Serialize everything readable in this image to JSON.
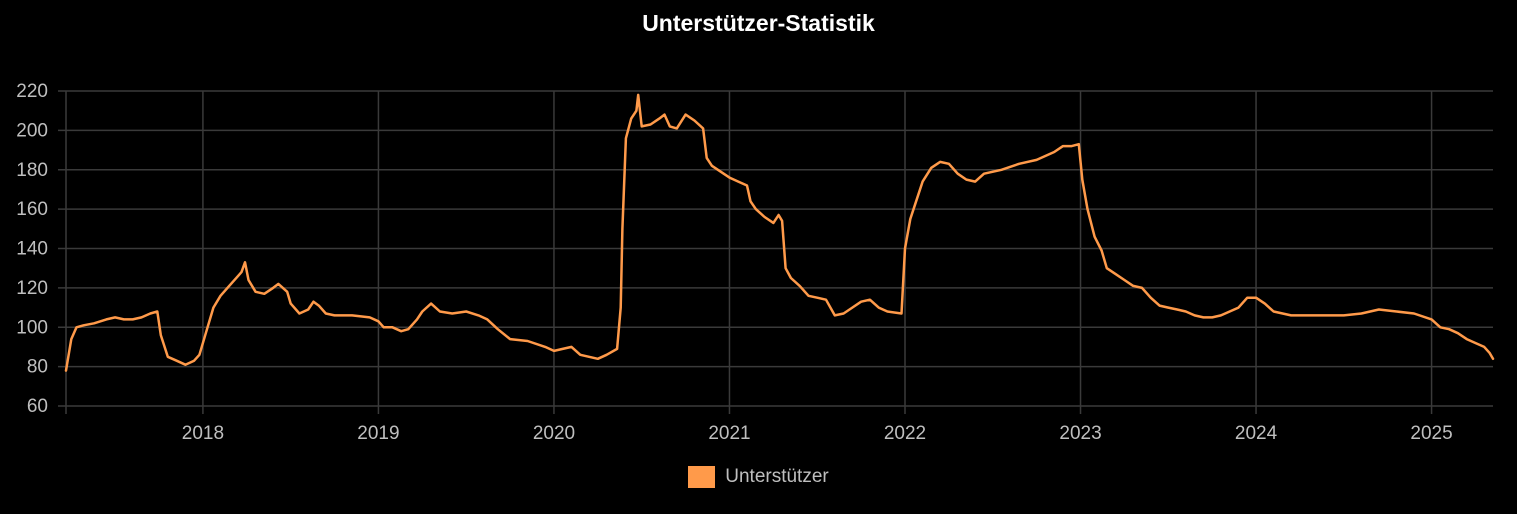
{
  "chart_data": {
    "type": "line",
    "title": "Unterstützer-Statistik",
    "xlabel": "",
    "ylabel": "",
    "ylim": [
      60,
      220
    ],
    "yticks": [
      60,
      80,
      100,
      120,
      140,
      160,
      180,
      200,
      220
    ],
    "xlim": [
      2017.22,
      2025.35
    ],
    "xticks": [
      "2018",
      "2019",
      "2020",
      "2021",
      "2022",
      "2023",
      "2024",
      "2025"
    ],
    "grid": true,
    "legend_position": "bottom",
    "series": [
      {
        "name": "Unterstützer",
        "color": "#ff9a4a",
        "points": [
          [
            2017.22,
            78
          ],
          [
            2017.25,
            94
          ],
          [
            2017.28,
            100
          ],
          [
            2017.32,
            101
          ],
          [
            2017.38,
            102
          ],
          [
            2017.45,
            104
          ],
          [
            2017.5,
            105
          ],
          [
            2017.55,
            104
          ],
          [
            2017.6,
            104
          ],
          [
            2017.65,
            105
          ],
          [
            2017.7,
            107
          ],
          [
            2017.74,
            108
          ],
          [
            2017.76,
            96
          ],
          [
            2017.8,
            85
          ],
          [
            2017.85,
            83
          ],
          [
            2017.9,
            81
          ],
          [
            2017.95,
            83
          ],
          [
            2017.98,
            86
          ],
          [
            2018.02,
            98
          ],
          [
            2018.06,
            110
          ],
          [
            2018.1,
            116
          ],
          [
            2018.15,
            121
          ],
          [
            2018.2,
            126
          ],
          [
            2018.22,
            128
          ],
          [
            2018.24,
            133
          ],
          [
            2018.26,
            124
          ],
          [
            2018.3,
            118
          ],
          [
            2018.35,
            117
          ],
          [
            2018.4,
            120
          ],
          [
            2018.43,
            122
          ],
          [
            2018.48,
            118
          ],
          [
            2018.5,
            112
          ],
          [
            2018.55,
            107
          ],
          [
            2018.6,
            109
          ],
          [
            2018.63,
            113
          ],
          [
            2018.66,
            111
          ],
          [
            2018.7,
            107
          ],
          [
            2018.75,
            106
          ],
          [
            2018.85,
            106
          ],
          [
            2018.95,
            105
          ],
          [
            2019.0,
            103
          ],
          [
            2019.03,
            100
          ],
          [
            2019.08,
            100
          ],
          [
            2019.13,
            98
          ],
          [
            2019.17,
            99
          ],
          [
            2019.22,
            104
          ],
          [
            2019.25,
            108
          ],
          [
            2019.3,
            112
          ],
          [
            2019.35,
            108
          ],
          [
            2019.42,
            107
          ],
          [
            2019.5,
            108
          ],
          [
            2019.57,
            106
          ],
          [
            2019.62,
            104
          ],
          [
            2019.68,
            99
          ],
          [
            2019.75,
            94
          ],
          [
            2019.85,
            93
          ],
          [
            2019.95,
            90
          ],
          [
            2020.0,
            88
          ],
          [
            2020.05,
            89
          ],
          [
            2020.1,
            90
          ],
          [
            2020.15,
            86
          ],
          [
            2020.25,
            84
          ],
          [
            2020.3,
            86
          ],
          [
            2020.36,
            89
          ],
          [
            2020.38,
            110
          ],
          [
            2020.39,
            150
          ],
          [
            2020.41,
            196
          ],
          [
            2020.44,
            206
          ],
          [
            2020.47,
            210
          ],
          [
            2020.48,
            218
          ],
          [
            2020.5,
            202
          ],
          [
            2020.55,
            203
          ],
          [
            2020.6,
            206
          ],
          [
            2020.63,
            208
          ],
          [
            2020.66,
            202
          ],
          [
            2020.7,
            201
          ],
          [
            2020.75,
            208
          ],
          [
            2020.8,
            205
          ],
          [
            2020.85,
            201
          ],
          [
            2020.87,
            186
          ],
          [
            2020.9,
            182
          ],
          [
            2020.95,
            179
          ],
          [
            2021.0,
            176
          ],
          [
            2021.05,
            174
          ],
          [
            2021.1,
            172
          ],
          [
            2021.12,
            164
          ],
          [
            2021.15,
            160
          ],
          [
            2021.2,
            156
          ],
          [
            2021.25,
            153
          ],
          [
            2021.28,
            157
          ],
          [
            2021.3,
            154
          ],
          [
            2021.32,
            130
          ],
          [
            2021.35,
            125
          ],
          [
            2021.4,
            121
          ],
          [
            2021.45,
            116
          ],
          [
            2021.5,
            115
          ],
          [
            2021.55,
            114
          ],
          [
            2021.6,
            106
          ],
          [
            2021.65,
            107
          ],
          [
            2021.7,
            110
          ],
          [
            2021.75,
            113
          ],
          [
            2021.8,
            114
          ],
          [
            2021.85,
            110
          ],
          [
            2021.9,
            108
          ],
          [
            2021.98,
            107
          ],
          [
            2022.0,
            140
          ],
          [
            2022.03,
            155
          ],
          [
            2022.06,
            163
          ],
          [
            2022.1,
            174
          ],
          [
            2022.15,
            181
          ],
          [
            2022.2,
            184
          ],
          [
            2022.25,
            183
          ],
          [
            2022.3,
            178
          ],
          [
            2022.35,
            175
          ],
          [
            2022.4,
            174
          ],
          [
            2022.45,
            178
          ],
          [
            2022.55,
            180
          ],
          [
            2022.65,
            183
          ],
          [
            2022.75,
            185
          ],
          [
            2022.85,
            189
          ],
          [
            2022.9,
            192
          ],
          [
            2022.95,
            192
          ],
          [
            2022.99,
            193
          ],
          [
            2023.01,
            175
          ],
          [
            2023.04,
            160
          ],
          [
            2023.08,
            146
          ],
          [
            2023.12,
            139
          ],
          [
            2023.15,
            130
          ],
          [
            2023.2,
            127
          ],
          [
            2023.25,
            124
          ],
          [
            2023.3,
            121
          ],
          [
            2023.35,
            120
          ],
          [
            2023.4,
            115
          ],
          [
            2023.45,
            111
          ],
          [
            2023.5,
            110
          ],
          [
            2023.55,
            109
          ],
          [
            2023.6,
            108
          ],
          [
            2023.65,
            106
          ],
          [
            2023.7,
            105
          ],
          [
            2023.75,
            105
          ],
          [
            2023.8,
            106
          ],
          [
            2023.85,
            108
          ],
          [
            2023.9,
            110
          ],
          [
            2023.95,
            115
          ],
          [
            2024.0,
            115
          ],
          [
            2024.05,
            112
          ],
          [
            2024.1,
            108
          ],
          [
            2024.2,
            106
          ],
          [
            2024.3,
            106
          ],
          [
            2024.4,
            106
          ],
          [
            2024.5,
            106
          ],
          [
            2024.6,
            107
          ],
          [
            2024.7,
            109
          ],
          [
            2024.8,
            108
          ],
          [
            2024.9,
            107
          ],
          [
            2025.0,
            104
          ],
          [
            2025.05,
            100
          ],
          [
            2025.1,
            99
          ],
          [
            2025.15,
            97
          ],
          [
            2025.2,
            94
          ],
          [
            2025.25,
            92
          ],
          [
            2025.3,
            90
          ],
          [
            2025.33,
            87
          ],
          [
            2025.35,
            84
          ]
        ]
      }
    ]
  }
}
